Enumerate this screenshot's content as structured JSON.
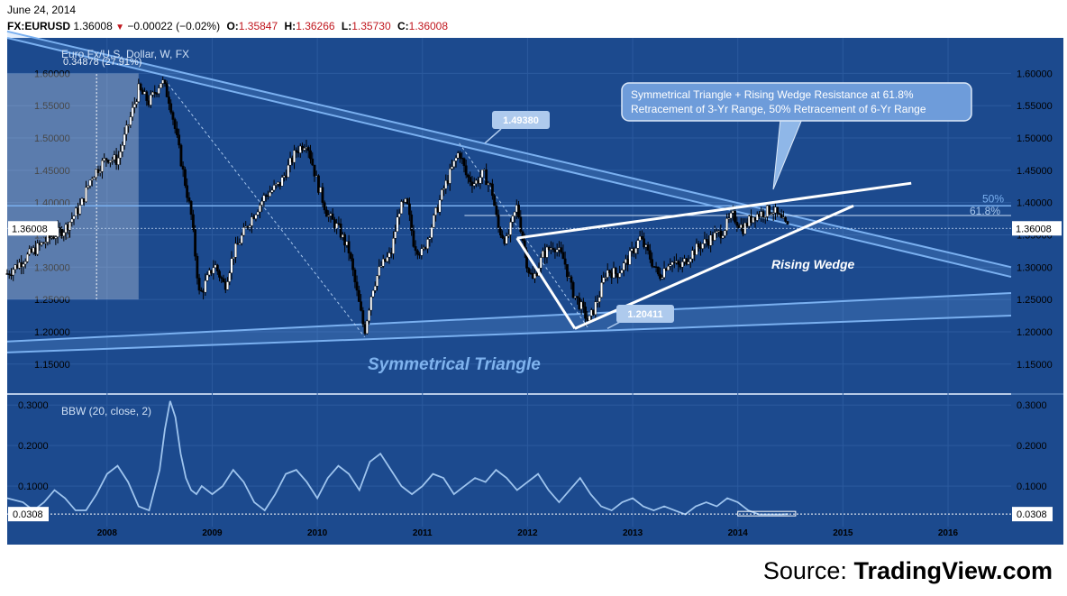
{
  "header": {
    "date": "June 24, 2014",
    "symbol": "FX:EURUSD",
    "last": "1.36008",
    "change": "−0.00022 (−0.02%)",
    "o_label": "O:",
    "open": "1.35847",
    "h_label": "H:",
    "high": "1.36266",
    "l_label": "L:",
    "low": "1.35730",
    "c_label": "C:",
    "close": "1.36008"
  },
  "colors": {
    "background": "#1c4a8e",
    "grid": "#2b5a9e",
    "line": "#7ab0f0",
    "bar_up": "#ffffff",
    "bar_down": "#000000",
    "pattern": "#ffffff",
    "bbw_line": "#9ec4ee",
    "price_axis_text": "#000000"
  },
  "chart_data": [
    {
      "type": "candlestick",
      "title": "Euro Fx/U.S. Dollar, W, FX",
      "xlim": [
        2007.05,
        2016.6
      ],
      "ylim": [
        1.105,
        1.655
      ],
      "ytick_labels": [
        "1.60000",
        "1.55000",
        "1.50000",
        "1.45000",
        "1.40000",
        "1.35000",
        "1.30000",
        "1.25000",
        "1.20000",
        "1.15000"
      ],
      "ytick_values": [
        1.6,
        1.55,
        1.5,
        1.45,
        1.4,
        1.35,
        1.3,
        1.25,
        1.2,
        1.15
      ],
      "xtick_labels": [
        "2008",
        "2009",
        "2010",
        "2011",
        "2012",
        "2013",
        "2014",
        "2015",
        "2016"
      ],
      "xtick_values": [
        2008,
        2009,
        2010,
        2011,
        2012,
        2013,
        2014,
        2015,
        2016
      ],
      "price_marker": {
        "label": "1.36008",
        "value": 1.36008
      },
      "pivots": [
        [
          2007.05,
          1.29
        ],
        [
          2007.3,
          1.325
        ],
        [
          2007.45,
          1.345
        ],
        [
          2007.6,
          1.36
        ],
        [
          2007.75,
          1.395
        ],
        [
          2007.85,
          1.44
        ],
        [
          2008.0,
          1.47
        ],
        [
          2008.1,
          1.465
        ],
        [
          2008.22,
          1.53
        ],
        [
          2008.3,
          1.575
        ],
        [
          2008.4,
          1.555
        ],
        [
          2008.52,
          1.59
        ],
        [
          2008.6,
          1.555
        ],
        [
          2008.72,
          1.45
        ],
        [
          2008.8,
          1.38
        ],
        [
          2008.88,
          1.255
        ],
        [
          2008.95,
          1.28
        ],
        [
          2009.02,
          1.305
        ],
        [
          2009.12,
          1.27
        ],
        [
          2009.2,
          1.32
        ],
        [
          2009.35,
          1.37
        ],
        [
          2009.5,
          1.41
        ],
        [
          2009.65,
          1.43
        ],
        [
          2009.8,
          1.48
        ],
        [
          2009.9,
          1.495
        ],
        [
          2010.0,
          1.43
        ],
        [
          2010.1,
          1.38
        ],
        [
          2010.2,
          1.36
        ],
        [
          2010.3,
          1.325
        ],
        [
          2010.4,
          1.24
        ],
        [
          2010.45,
          1.2
        ],
        [
          2010.52,
          1.265
        ],
        [
          2010.6,
          1.3
        ],
        [
          2010.7,
          1.32
        ],
        [
          2010.78,
          1.39
        ],
        [
          2010.85,
          1.4
        ],
        [
          2010.92,
          1.335
        ],
        [
          2011.0,
          1.32
        ],
        [
          2011.1,
          1.37
        ],
        [
          2011.2,
          1.42
        ],
        [
          2011.3,
          1.46
        ],
        [
          2011.35,
          1.48
        ],
        [
          2011.42,
          1.44
        ],
        [
          2011.5,
          1.43
        ],
        [
          2011.58,
          1.445
        ],
        [
          2011.66,
          1.42
        ],
        [
          2011.72,
          1.36
        ],
        [
          2011.8,
          1.34
        ],
        [
          2011.9,
          1.395
        ],
        [
          2012.0,
          1.3
        ],
        [
          2012.05,
          1.28
        ],
        [
          2012.15,
          1.32
        ],
        [
          2012.25,
          1.335
        ],
        [
          2012.35,
          1.31
        ],
        [
          2012.42,
          1.265
        ],
        [
          2012.52,
          1.235
        ],
        [
          2012.58,
          1.215
        ],
        [
          2012.68,
          1.255
        ],
        [
          2012.75,
          1.295
        ],
        [
          2012.85,
          1.29
        ],
        [
          2012.95,
          1.31
        ],
        [
          2013.07,
          1.345
        ],
        [
          2013.15,
          1.32
        ],
        [
          2013.25,
          1.285
        ],
        [
          2013.35,
          1.31
        ],
        [
          2013.45,
          1.3
        ],
        [
          2013.55,
          1.32
        ],
        [
          2013.65,
          1.335
        ],
        [
          2013.75,
          1.345
        ],
        [
          2013.85,
          1.355
        ],
        [
          2013.95,
          1.38
        ],
        [
          2014.05,
          1.36
        ],
        [
          2014.15,
          1.38
        ],
        [
          2014.25,
          1.385
        ],
        [
          2014.33,
          1.39
        ],
        [
          2014.4,
          1.375
        ],
        [
          2014.48,
          1.36
        ]
      ],
      "annotations": {
        "top_label": "1.49380",
        "low_label": "1.20411",
        "range_label": "0.34878 (27.91%)",
        "callout": [
          "Symmetrical Triangle + Rising Wedge Resistance at 61.8%",
          "Retracement of 3-Yr Range, 50% Retracement of 6-Yr Range"
        ],
        "level_50": "50%",
        "level_618": "61.8%",
        "rising_wedge": "Rising Wedge",
        "sym_triangle": "Symmetrical Triangle"
      },
      "upper_channel": {
        "x": [
          2007.05,
          2016.6
        ],
        "y1": [
          1.665,
          1.3
        ],
        "y2": [
          1.655,
          1.285
        ]
      },
      "lower_channel": {
        "x": [
          2007.05,
          2016.6
        ],
        "y1": [
          1.185,
          1.26
        ],
        "y2": [
          1.168,
          1.225
        ]
      },
      "horizontal_levels": [
        1.395,
        1.38
      ],
      "wedge_upper": {
        "x": [
          2011.9,
          2015.65
        ],
        "y": [
          1.345,
          1.43
        ]
      },
      "wedge_lower": {
        "x": [
          2012.45,
          2015.1
        ],
        "y": [
          1.205,
          1.395
        ]
      },
      "range_box": {
        "x": [
          2007.05,
          2008.3
        ],
        "y": [
          1.25,
          1.6
        ]
      }
    },
    {
      "type": "line",
      "title": "BBW (20, close, 2)",
      "series_name": "BBW (20, close, 2)",
      "ylim": [
        0.0,
        0.325
      ],
      "ytick_labels": [
        "0.3000",
        "0.2000",
        "0.1000"
      ],
      "ytick_values": [
        0.3,
        0.2,
        0.1
      ],
      "last_value": {
        "label": "0.0308",
        "value": 0.0308
      },
      "x": [
        2007.05,
        2007.2,
        2007.3,
        2007.4,
        2007.5,
        2007.6,
        2007.7,
        2007.8,
        2007.9,
        2008.0,
        2008.1,
        2008.2,
        2008.3,
        2008.4,
        2008.5,
        2008.55,
        2008.6,
        2008.65,
        2008.7,
        2008.75,
        2008.8,
        2008.85,
        2008.9,
        2008.95,
        2009.0,
        2009.1,
        2009.2,
        2009.3,
        2009.4,
        2009.5,
        2009.6,
        2009.7,
        2009.8,
        2009.9,
        2010.0,
        2010.1,
        2010.2,
        2010.3,
        2010.4,
        2010.5,
        2010.6,
        2010.7,
        2010.8,
        2010.9,
        2011.0,
        2011.1,
        2011.2,
        2011.3,
        2011.4,
        2011.5,
        2011.6,
        2011.7,
        2011.8,
        2011.9,
        2012.0,
        2012.1,
        2012.2,
        2012.3,
        2012.4,
        2012.5,
        2012.6,
        2012.7,
        2012.8,
        2012.9,
        2013.0,
        2013.1,
        2013.2,
        2013.3,
        2013.4,
        2013.5,
        2013.6,
        2013.7,
        2013.8,
        2013.9,
        2014.0,
        2014.1,
        2014.2,
        2014.3,
        2014.4,
        2014.48
      ],
      "values": [
        0.07,
        0.06,
        0.04,
        0.06,
        0.09,
        0.07,
        0.04,
        0.04,
        0.08,
        0.13,
        0.15,
        0.11,
        0.05,
        0.04,
        0.14,
        0.24,
        0.31,
        0.27,
        0.18,
        0.12,
        0.09,
        0.08,
        0.1,
        0.09,
        0.08,
        0.1,
        0.14,
        0.11,
        0.06,
        0.04,
        0.08,
        0.13,
        0.14,
        0.11,
        0.07,
        0.12,
        0.15,
        0.13,
        0.09,
        0.16,
        0.18,
        0.14,
        0.1,
        0.08,
        0.1,
        0.13,
        0.12,
        0.08,
        0.1,
        0.12,
        0.11,
        0.14,
        0.12,
        0.09,
        0.11,
        0.13,
        0.09,
        0.06,
        0.09,
        0.12,
        0.08,
        0.05,
        0.04,
        0.06,
        0.07,
        0.05,
        0.04,
        0.05,
        0.04,
        0.03,
        0.05,
        0.06,
        0.05,
        0.07,
        0.06,
        0.04,
        0.03,
        0.03,
        0.03,
        0.0308
      ]
    }
  ],
  "source": {
    "prefix": "Source: ",
    "brand": "TradingView.com"
  }
}
